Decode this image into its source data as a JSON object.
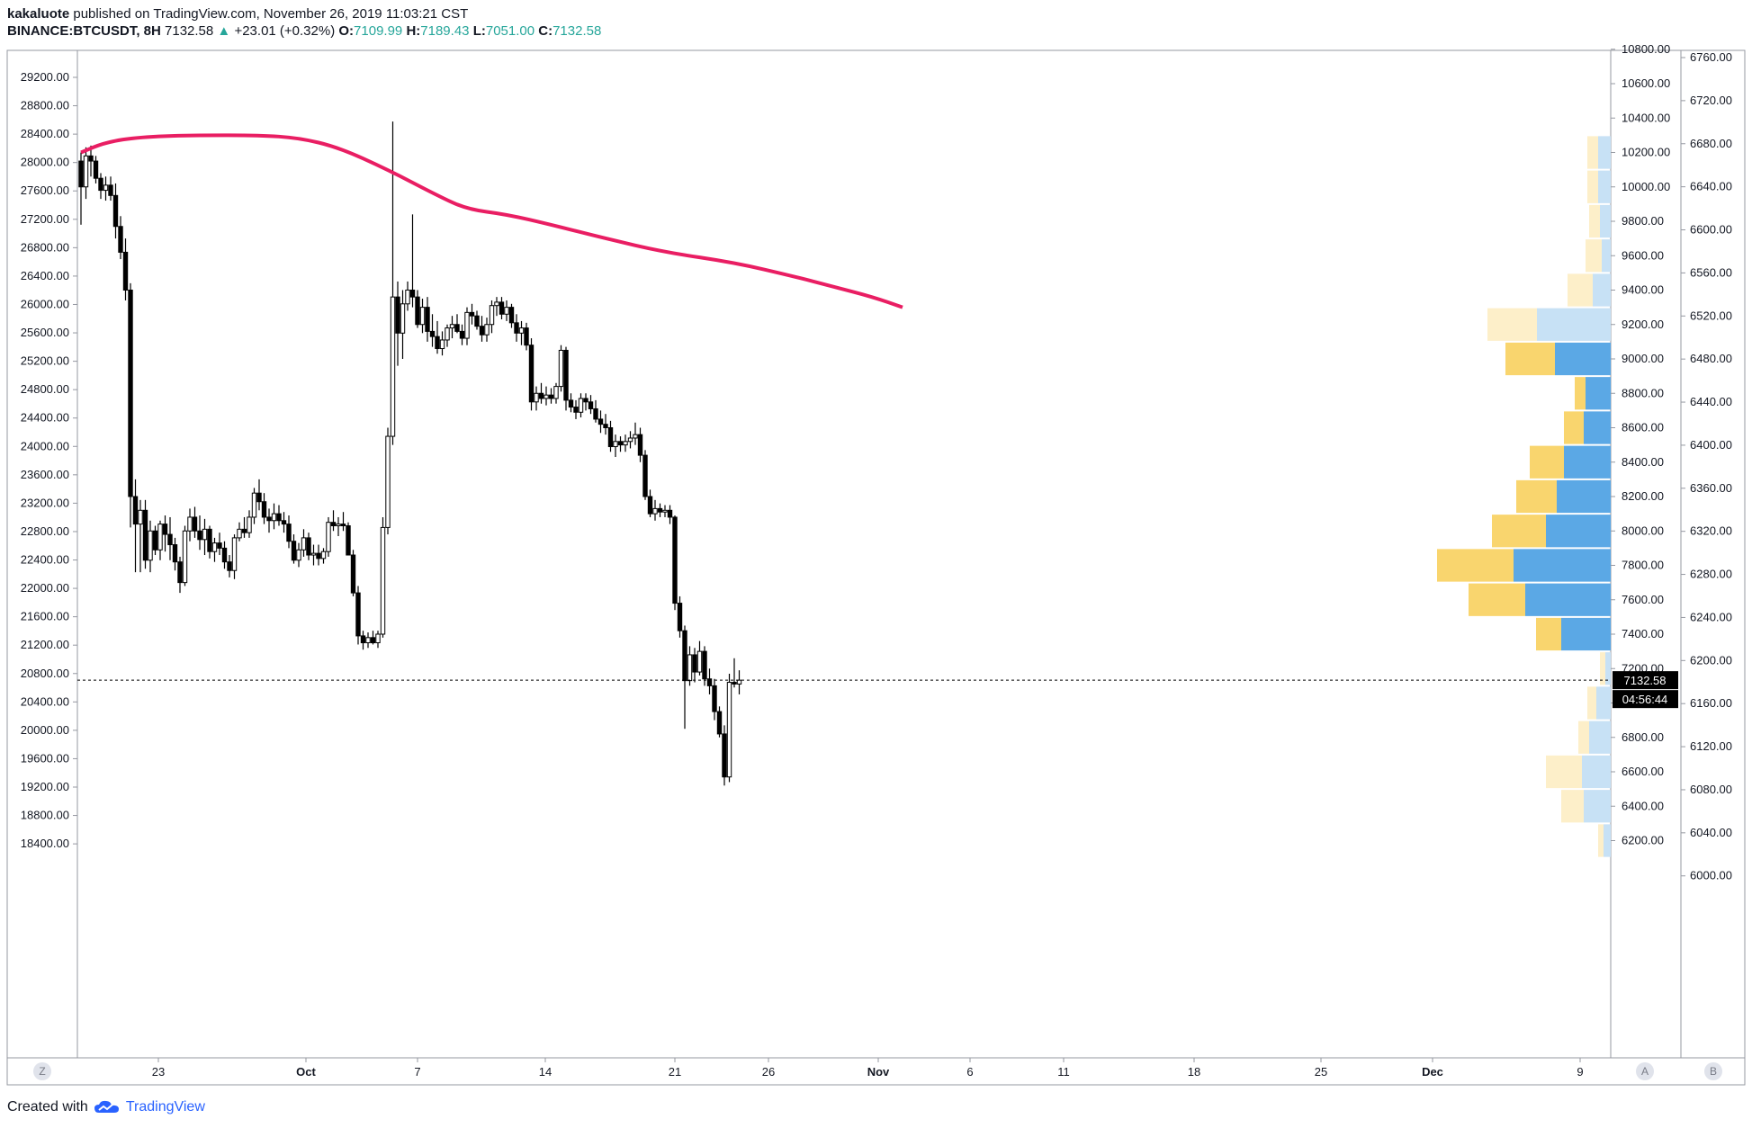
{
  "header": {
    "user": "kakaluote",
    "published": "published on TradingView.com, November 26, 2019 11:03:21 CST",
    "symbol": "BINANCE:BTCUSDT, 8H",
    "price": "7132.58",
    "change_arrow": "▲",
    "change": "+23.01 (+0.32%)",
    "o_label": "O:",
    "o_value": "7109.99",
    "h_label": "H:",
    "h_value": "7189.43",
    "l_label": "L:",
    "l_value": "7051.00",
    "c_label": "C:",
    "c_value": "7132.58"
  },
  "footer": {
    "created_with": "Created with",
    "brand": "TradingView"
  },
  "buttons": {
    "left": "Z",
    "a": "A",
    "b": "B"
  },
  "colors": {
    "up": "#26a69a",
    "ma": "#e91e63",
    "vp_up": "#5ba8e5",
    "vp_down": "#f9d56e",
    "vp_up_light": "#c7e1f5",
    "vp_down_light": "#fdefc9"
  },
  "last_price_label": "7132.58",
  "countdown_label": "04:56:44",
  "chart_data": {
    "type": "candlestick",
    "title": "BINANCE:BTCUSDT, 8H",
    "left_axis": {
      "ticks": [
        "29200.00",
        "28800.00",
        "28400.00",
        "28000.00",
        "27600.00",
        "27200.00",
        "26800.00",
        "26400.00",
        "26000.00",
        "25600.00",
        "25200.00",
        "24800.00",
        "24400.00",
        "24000.00",
        "23600.00",
        "23200.00",
        "22800.00",
        "22400.00",
        "22000.00",
        "21600.00",
        "21200.00",
        "20800.00",
        "20400.00",
        "20000.00",
        "19600.00",
        "19200.00",
        "18800.00",
        "18400.00"
      ],
      "range": [
        18000,
        29600
      ]
    },
    "right_axis_1": {
      "ticks": [
        "10800.00",
        "10600.00",
        "10400.00",
        "10200.00",
        "10000.00",
        "9800.00",
        "9600.00",
        "9400.00",
        "9200.00",
        "9000.00",
        "8800.00",
        "8600.00",
        "8400.00",
        "8200.00",
        "8000.00",
        "7800.00",
        "7600.00",
        "7400.00",
        "7200.00",
        "7000.00",
        "6800.00",
        "6600.00",
        "6400.00",
        "6200.00"
      ],
      "range": [
        6000,
        11000
      ]
    },
    "right_axis_2": {
      "ticks": [
        "6760.00",
        "6720.00",
        "6680.00",
        "6640.00",
        "6600.00",
        "6560.00",
        "6520.00",
        "6480.00",
        "6440.00",
        "6400.00",
        "6360.00",
        "6320.00",
        "6280.00",
        "6240.00",
        "6200.00",
        "6160.00",
        "6120.00",
        "6080.00",
        "6040.00",
        "6000.00"
      ],
      "range": [
        5960,
        6790
      ]
    },
    "x_axis": {
      "labels": [
        "23",
        "Oct",
        "7",
        "14",
        "21",
        "26",
        "Nov",
        "6",
        "11",
        "18",
        "25",
        "Dec",
        "9"
      ]
    },
    "ma_series": {
      "name": "",
      "points": [
        [
          0,
          10200
        ],
        [
          5,
          10260
        ],
        [
          12,
          10290
        ],
        [
          22,
          10300
        ],
        [
          36,
          10300
        ],
        [
          44,
          10285
        ],
        [
          52,
          10230
        ],
        [
          62,
          10100
        ],
        [
          72,
          9950
        ],
        [
          78,
          9870
        ],
        [
          86,
          9840
        ],
        [
          95,
          9780
        ],
        [
          106,
          9700
        ],
        [
          118,
          9620
        ],
        [
          132,
          9560
        ],
        [
          144,
          9480
        ],
        [
          152,
          9420
        ],
        [
          160,
          9360
        ],
        [
          166,
          9300
        ]
      ]
    },
    "candles": [
      [
        10150,
        10200,
        9780,
        10000
      ],
      [
        10000,
        10230,
        9930,
        10180
      ],
      [
        10180,
        10240,
        10060,
        10150
      ],
      [
        10150,
        10180,
        10020,
        10050
      ],
      [
        10050,
        10080,
        9930,
        9980
      ],
      [
        9980,
        10060,
        9920,
        10010
      ],
      [
        10010,
        10060,
        9920,
        9950
      ],
      [
        9950,
        10020,
        9700,
        9770
      ],
      [
        9770,
        9830,
        9580,
        9620
      ],
      [
        9620,
        9700,
        9340,
        9400
      ],
      [
        9400,
        9440,
        8020,
        8200
      ],
      [
        8200,
        8300,
        7760,
        8040
      ],
      [
        8040,
        8180,
        7760,
        8120
      ],
      [
        8120,
        8180,
        7780,
        7830
      ],
      [
        7830,
        8060,
        7760,
        8000
      ],
      [
        8000,
        8030,
        7860,
        7890
      ],
      [
        7890,
        8060,
        7830,
        8040
      ],
      [
        8040,
        8090,
        7880,
        7980
      ],
      [
        7980,
        8080,
        7830,
        7920
      ],
      [
        7920,
        7960,
        7770,
        7820
      ],
      [
        7820,
        7850,
        7640,
        7700
      ],
      [
        7700,
        8030,
        7680,
        8000
      ],
      [
        8000,
        8130,
        7940,
        8080
      ],
      [
        8080,
        8140,
        7960,
        8000
      ],
      [
        8000,
        8090,
        7890,
        7950
      ],
      [
        7950,
        8070,
        7860,
        8010
      ],
      [
        8010,
        8030,
        7840,
        7880
      ],
      [
        7880,
        7960,
        7820,
        7930
      ],
      [
        7930,
        7990,
        7860,
        7900
      ],
      [
        7900,
        7940,
        7780,
        7820
      ],
      [
        7820,
        7860,
        7730,
        7770
      ],
      [
        7770,
        7980,
        7720,
        7960
      ],
      [
        7960,
        8050,
        7940,
        8010
      ],
      [
        8010,
        8080,
        7960,
        7990
      ],
      [
        7990,
        8120,
        7960,
        8080
      ],
      [
        8080,
        8250,
        8040,
        8220
      ],
      [
        8220,
        8300,
        8120,
        8170
      ],
      [
        8170,
        8220,
        8040,
        8080
      ],
      [
        8080,
        8130,
        7990,
        8060
      ],
      [
        8060,
        8160,
        8010,
        8100
      ],
      [
        8100,
        8150,
        8030,
        8060
      ],
      [
        8060,
        8110,
        7990,
        8040
      ],
      [
        8040,
        8090,
        7900,
        7940
      ],
      [
        7940,
        7980,
        7810,
        7830
      ],
      [
        7830,
        7930,
        7790,
        7890
      ],
      [
        7890,
        8010,
        7850,
        7960
      ],
      [
        7960,
        7990,
        7830,
        7860
      ],
      [
        7860,
        7920,
        7800,
        7870
      ],
      [
        7870,
        7920,
        7800,
        7840
      ],
      [
        7840,
        7900,
        7810,
        7880
      ],
      [
        7880,
        8080,
        7850,
        8050
      ],
      [
        8050,
        8120,
        8000,
        8030
      ],
      [
        8030,
        8080,
        7970,
        8040
      ],
      [
        8040,
        8110,
        8000,
        8030
      ],
      [
        8030,
        8050,
        7940,
        7860
      ],
      [
        7860,
        7890,
        7620,
        7640
      ],
      [
        7640,
        7680,
        7340,
        7390
      ],
      [
        7390,
        7420,
        7310,
        7350
      ],
      [
        7350,
        7410,
        7320,
        7380
      ],
      [
        7380,
        7420,
        7340,
        7350
      ],
      [
        7350,
        7420,
        7320,
        7400
      ],
      [
        7400,
        8080,
        7380,
        8020
      ],
      [
        8020,
        8600,
        7980,
        8550
      ],
      [
        8550,
        10380,
        8500,
        9360
      ],
      [
        9360,
        9450,
        8960,
        9150
      ],
      [
        9150,
        9400,
        9000,
        9320
      ],
      [
        9320,
        9450,
        9280,
        9400
      ],
      [
        9400,
        9840,
        9300,
        9360
      ],
      [
        9360,
        9400,
        9180,
        9200
      ],
      [
        9200,
        9350,
        9150,
        9300
      ],
      [
        9300,
        9360,
        9100,
        9160
      ],
      [
        9160,
        9260,
        9070,
        9130
      ],
      [
        9130,
        9220,
        9030,
        9060
      ],
      [
        9060,
        9160,
        9020,
        9110
      ],
      [
        9110,
        9200,
        9070,
        9180
      ],
      [
        9180,
        9250,
        9120,
        9200
      ],
      [
        9200,
        9260,
        9150,
        9160
      ],
      [
        9160,
        9200,
        9080,
        9120
      ],
      [
        9120,
        9300,
        9080,
        9270
      ],
      [
        9270,
        9320,
        9200,
        9250
      ],
      [
        9250,
        9280,
        9170,
        9190
      ],
      [
        9190,
        9250,
        9100,
        9140
      ],
      [
        9140,
        9240,
        9100,
        9200
      ],
      [
        9200,
        9340,
        9150,
        9310
      ],
      [
        9310,
        9360,
        9250,
        9330
      ],
      [
        9330,
        9360,
        9230,
        9260
      ],
      [
        9260,
        9340,
        9220,
        9300
      ],
      [
        9300,
        9320,
        9180,
        9210
      ],
      [
        9210,
        9260,
        9100,
        9150
      ],
      [
        9150,
        9220,
        9080,
        9180
      ],
      [
        9180,
        9210,
        9050,
        9080
      ],
      [
        9080,
        9120,
        8700,
        8750
      ],
      [
        8750,
        8840,
        8700,
        8800
      ],
      [
        8800,
        8860,
        8740,
        8770
      ],
      [
        8770,
        8840,
        8730,
        8790
      ],
      [
        8790,
        8830,
        8740,
        8770
      ],
      [
        8770,
        8860,
        8740,
        8840
      ],
      [
        8840,
        9080,
        8810,
        9050
      ],
      [
        9050,
        9070,
        8700,
        8760
      ],
      [
        8760,
        8800,
        8690,
        8720
      ],
      [
        8720,
        8760,
        8650,
        8690
      ],
      [
        8690,
        8800,
        8660,
        8770
      ],
      [
        8770,
        8800,
        8700,
        8750
      ],
      [
        8750,
        8790,
        8680,
        8710
      ],
      [
        8710,
        8760,
        8630,
        8650
      ],
      [
        8650,
        8700,
        8570,
        8620
      ],
      [
        8620,
        8680,
        8560,
        8600
      ],
      [
        8600,
        8640,
        8460,
        8490
      ],
      [
        8490,
        8560,
        8430,
        8520
      ],
      [
        8520,
        8550,
        8460,
        8500
      ],
      [
        8500,
        8560,
        8460,
        8520
      ],
      [
        8520,
        8580,
        8480,
        8540
      ],
      [
        8540,
        8630,
        8500,
        8560
      ],
      [
        8560,
        8600,
        8400,
        8440
      ],
      [
        8440,
        8470,
        8180,
        8200
      ],
      [
        8200,
        8240,
        8080,
        8100
      ],
      [
        8100,
        8180,
        8060,
        8130
      ],
      [
        8130,
        8160,
        8080,
        8110
      ],
      [
        8110,
        8150,
        8080,
        8120
      ],
      [
        8120,
        8150,
        8040,
        8080
      ],
      [
        8080,
        8090,
        7540,
        7580
      ],
      [
        7580,
        7620,
        7380,
        7420
      ],
      [
        7420,
        7450,
        6850,
        7130
      ],
      [
        7130,
        7330,
        7100,
        7280
      ],
      [
        7280,
        7320,
        7120,
        7180
      ],
      [
        7180,
        7360,
        7160,
        7300
      ],
      [
        7300,
        7330,
        7100,
        7140
      ],
      [
        7140,
        7200,
        7050,
        7100
      ],
      [
        7100,
        7140,
        6900,
        6950
      ],
      [
        6950,
        6980,
        6800,
        6820
      ],
      [
        6820,
        6870,
        6520,
        6570
      ],
      [
        6570,
        7170,
        6540,
        7120
      ],
      [
        7120,
        7260,
        7090,
        7110
      ],
      [
        7110,
        7190,
        7050,
        7132.58
      ]
    ],
    "volume_profile": {
      "rows": [
        {
          "price": 10200,
          "up": 12,
          "down": 14,
          "light": true
        },
        {
          "price": 10000,
          "up": 12,
          "down": 14,
          "light": true
        },
        {
          "price": 9800,
          "up": 12,
          "down": 12,
          "light": true
        },
        {
          "price": 9600,
          "up": 18,
          "down": 10,
          "light": true
        },
        {
          "price": 9400,
          "up": 28,
          "down": 20,
          "light": true
        },
        {
          "price": 9200,
          "up": 55,
          "down": 82,
          "light": true
        },
        {
          "price": 9000,
          "up": 55,
          "down": 62,
          "light": false
        },
        {
          "price": 8800,
          "up": 12,
          "down": 28,
          "light": false
        },
        {
          "price": 8600,
          "up": 22,
          "down": 30,
          "light": false
        },
        {
          "price": 8400,
          "up": 38,
          "down": 52,
          "light": false
        },
        {
          "price": 8200,
          "up": 45,
          "down": 60,
          "light": false
        },
        {
          "price": 8000,
          "up": 60,
          "down": 72,
          "light": false
        },
        {
          "price": 7800,
          "up": 85,
          "down": 108,
          "light": false
        },
        {
          "price": 7600,
          "up": 63,
          "down": 95,
          "light": false
        },
        {
          "price": 7400,
          "up": 28,
          "down": 55,
          "light": false
        },
        {
          "price": 7200,
          "up": 6,
          "down": 6,
          "light": true
        },
        {
          "price": 7000,
          "up": 10,
          "down": 16,
          "light": true
        },
        {
          "price": 6800,
          "up": 12,
          "down": 24,
          "light": true
        },
        {
          "price": 6600,
          "up": 40,
          "down": 32,
          "light": true
        },
        {
          "price": 6400,
          "up": 25,
          "down": 30,
          "light": true
        },
        {
          "price": 6200,
          "up": 6,
          "down": 8,
          "light": true
        }
      ]
    }
  }
}
